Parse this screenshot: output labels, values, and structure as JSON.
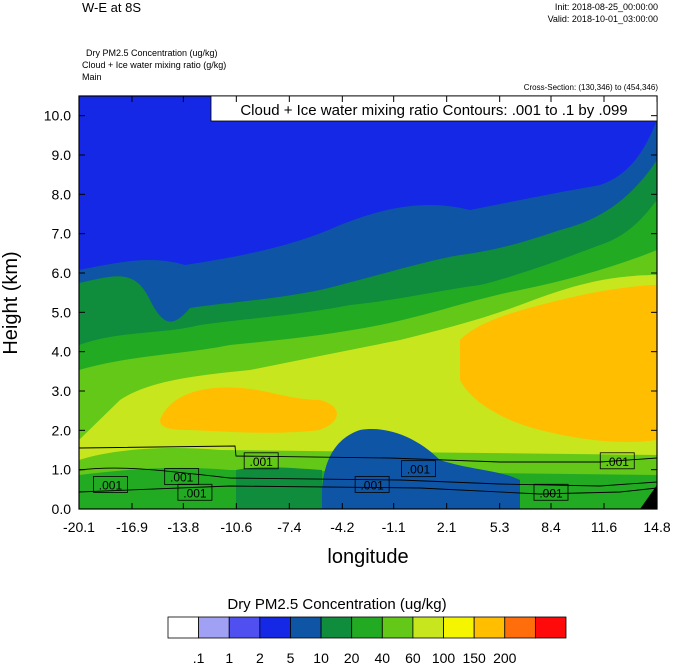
{
  "header": {
    "title": "W-E at 8S",
    "init": "Init: 2018-08-25_00:00:00",
    "valid": "Valid: 2018-10-01_03:00:00",
    "field_lines": [
      "Dry PM2.5 Concentration   (ug/kg)",
      "Cloud + Ice water mixing ratio   (g/kg)",
      "Main"
    ],
    "cross_section": "Cross-Section: (130,346) to (454,346)"
  },
  "chart_data": {
    "type": "heatmap",
    "title": "W-E at 8S",
    "xlabel": "longitude",
    "ylabel": "Height (km)",
    "x_ticks": [
      "-20.1",
      "-16.9",
      "-13.8",
      "-10.6",
      "-7.4",
      "-4.2",
      "-1.1",
      "2.1",
      "5.3",
      "8.4",
      "11.6",
      "14.8"
    ],
    "y_ticks": [
      "0.0",
      "1.0",
      "2.0",
      "3.0",
      "4.0",
      "5.0",
      "6.0",
      "7.0",
      "8.0",
      "9.0",
      "10.0"
    ],
    "xlim": [
      -20.1,
      14.8
    ],
    "ylim": [
      0,
      10.5
    ],
    "contour_note": "Cloud + Ice water mixing ratio Contours: .001 to .1 by .099",
    "contour_labels": [
      ".001",
      ".001",
      ".001",
      ".001",
      ".001",
      ".001",
      ".001",
      ".001"
    ],
    "colorbar": {
      "title": "Dry PM2.5 Concentration  (ug/kg)",
      "levels": [
        ".1",
        "1",
        "2",
        "5",
        "10",
        "20",
        "40",
        "60",
        "100",
        "150",
        "200"
      ],
      "colors": [
        "#ffffff",
        "#a0a0f5",
        "#5050f0",
        "#1428e6",
        "#0f55a5",
        "#0f8c3c",
        "#23aa23",
        "#64c819",
        "#c8e61e",
        "#f5f500",
        "#ffbe00",
        "#ff6e0a",
        "#ff0a0a"
      ]
    }
  }
}
